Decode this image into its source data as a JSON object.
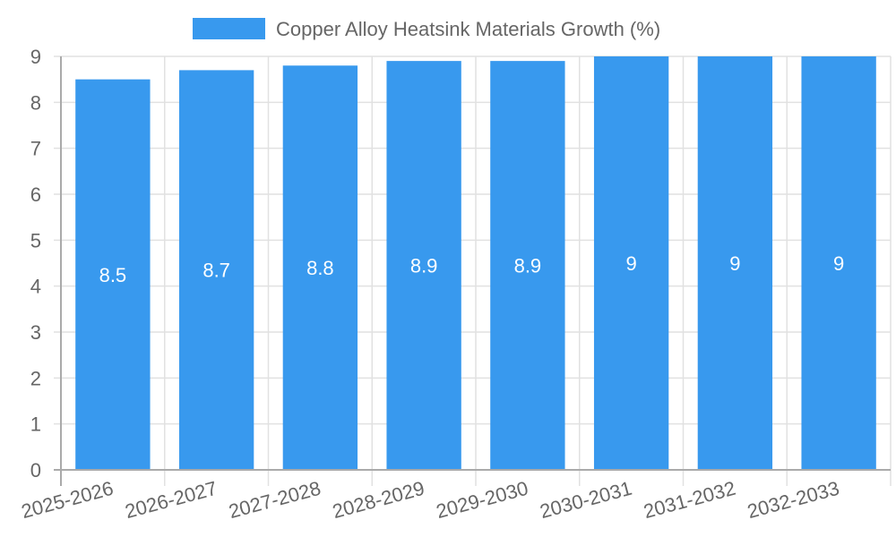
{
  "chart_data": {
    "type": "bar",
    "title": "",
    "legend": [
      {
        "label": "Copper Alloy Heatsink Materials Growth (%)",
        "color": "#3899ee"
      }
    ],
    "legend_position": "top",
    "categories": [
      "2025-2026",
      "2026-2027",
      "2027-2028",
      "2028-2029",
      "2029-2030",
      "2030-2031",
      "2031-2032",
      "2032-2033"
    ],
    "series": [
      {
        "name": "Copper Alloy Heatsink Materials Growth (%)",
        "values": [
          8.5,
          8.7,
          8.8,
          8.9,
          8.9,
          9,
          9,
          9
        ],
        "color": "#3899ee"
      }
    ],
    "data_labels": [
      "8.5",
      "8.7",
      "8.8",
      "8.9",
      "8.9",
      "9",
      "9",
      "9"
    ],
    "xlabel": "",
    "ylabel": "",
    "ylim": [
      0,
      9
    ],
    "yticks": [
      "0",
      "1",
      "2",
      "3",
      "4",
      "5",
      "6",
      "7",
      "8",
      "9"
    ],
    "grid": true
  }
}
